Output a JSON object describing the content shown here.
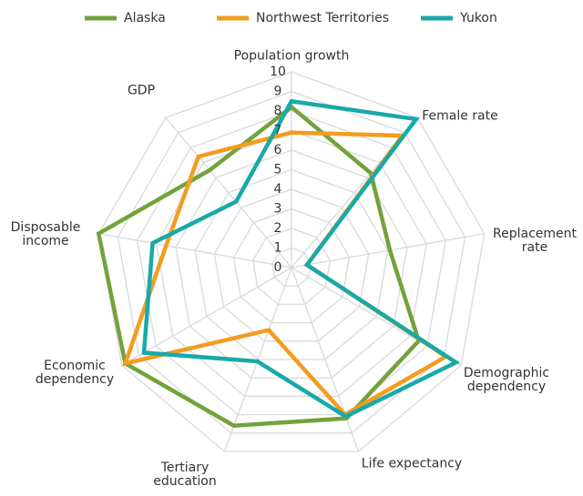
{
  "chart_data": {
    "type": "radar",
    "categories": [
      "Population growth",
      "Female rate",
      "Replacement rate",
      "Demographic dependency",
      "Life expectancy",
      "Tertiary education",
      "Economic dependency",
      "Disposable income",
      "GDP"
    ],
    "series": [
      {
        "name": "Alaska",
        "color": "#72a33b",
        "values": [
          8.2,
          6.3,
          5.1,
          7.5,
          8.2,
          8.6,
          9.8,
          10,
          6.5
        ]
      },
      {
        "name": "Northwest Territories",
        "color": "#f39c1f",
        "values": [
          6.9,
          8.8,
          0.8,
          9.1,
          8.0,
          3.4,
          9.8,
          6.5,
          7.4
        ]
      },
      {
        "name": "Yukon",
        "color": "#18a9a9",
        "values": [
          8.5,
          9.9,
          0.8,
          9.7,
          8.1,
          5.1,
          8.7,
          7.2,
          4.4
        ]
      }
    ],
    "ylim": [
      0,
      10
    ],
    "yticks": [
      0,
      1,
      2,
      3,
      4,
      5,
      6,
      7,
      8,
      9,
      10
    ],
    "grid": true,
    "legend": "top"
  }
}
